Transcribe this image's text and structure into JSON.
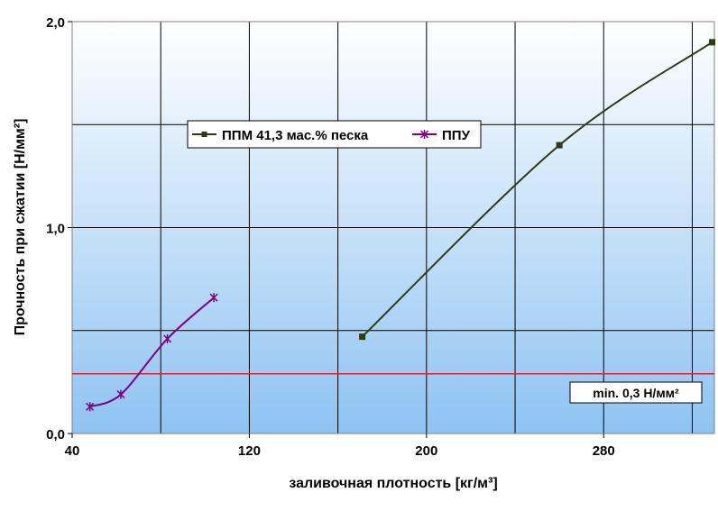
{
  "chart_data": {
    "type": "line",
    "title": "",
    "xlabel": "заливочная плотность [кг/м³]",
    "ylabel": "Прочность при сжатии [Н/мм²]",
    "xlim": [
      40,
      330
    ],
    "ylim": [
      0,
      2.0
    ],
    "x_ticks": [
      40,
      120,
      200,
      280
    ],
    "x_tick_labels": [
      "40",
      "120",
      "200",
      "280"
    ],
    "y_ticks": [
      0,
      1.0,
      2.0
    ],
    "y_tick_labels": [
      "0,0",
      "1,0",
      "2,0"
    ],
    "grid": true,
    "background": "vertical gradient: white at top to light blue at bottom",
    "legend_position": "top-center",
    "series": [
      {
        "name": "ППМ 41,3 мас.% песка",
        "color": "#2d3a12",
        "marker": "square",
        "smooth": true,
        "x": [
          171,
          260,
          329
        ],
        "y": [
          0.47,
          1.4,
          1.9
        ]
      },
      {
        "name": "ППУ",
        "color": "#800080",
        "marker": "asterisk",
        "smooth": true,
        "x": [
          48,
          62,
          83,
          104
        ],
        "y": [
          0.13,
          0.19,
          0.46,
          0.66
        ]
      }
    ],
    "reference_lines": [
      {
        "y": 0.29,
        "color": "#e0202a",
        "label": "min. 0,3 Н/мм²"
      }
    ]
  }
}
